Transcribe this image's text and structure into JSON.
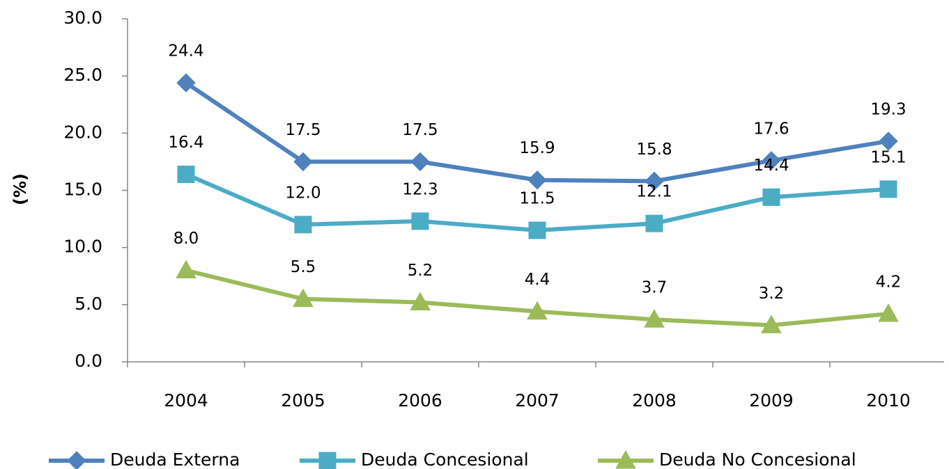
{
  "chart_data": {
    "type": "line",
    "y_label": "(%)",
    "categories": [
      "2004",
      "2005",
      "2006",
      "2007",
      "2008",
      "2009",
      "2010"
    ],
    "series": [
      {
        "name": "Deuda Externa",
        "color": "#4f81bd",
        "marker": "diamond",
        "values": [
          24.4,
          17.5,
          17.5,
          15.9,
          15.8,
          17.6,
          19.3
        ],
        "value_labels": [
          "24.4",
          "17.5",
          "17.5",
          "15.9",
          "15.8",
          "17.6",
          "19.3"
        ]
      },
      {
        "name": "Deuda Concesional",
        "color": "#4bacc6",
        "marker": "square",
        "values": [
          16.4,
          12.0,
          12.3,
          11.5,
          12.1,
          14.4,
          15.1
        ],
        "value_labels": [
          "16.4",
          "12.0",
          "12.3",
          "11.5",
          "12.1",
          "14.4",
          "15.1"
        ]
      },
      {
        "name": "Deuda No Concesional",
        "color": "#9bbb59",
        "marker": "triangle",
        "values": [
          8.0,
          5.5,
          5.2,
          4.4,
          3.7,
          3.2,
          4.2
        ],
        "value_labels": [
          "8.0",
          "5.5",
          "5.2",
          "4.4",
          "3.7",
          "3.2",
          "4.2"
        ]
      }
    ],
    "ylim": [
      0,
      30
    ],
    "yticks": [
      {
        "value": 0,
        "label": "0.0"
      },
      {
        "value": 5,
        "label": "5.0"
      },
      {
        "value": 10,
        "label": "10.0"
      },
      {
        "value": 15,
        "label": "15.0"
      },
      {
        "value": 20,
        "label": "20.0"
      },
      {
        "value": 25,
        "label": "25.0"
      },
      {
        "value": 30,
        "label": "30.0"
      }
    ],
    "grid": false,
    "legend": "bottom"
  }
}
